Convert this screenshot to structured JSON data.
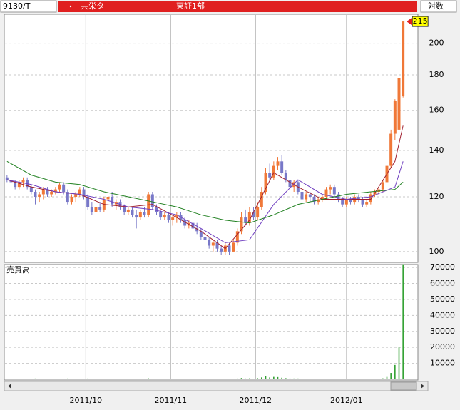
{
  "chart_data": {
    "type": "candlestick",
    "symbol": "9130/T",
    "name": "共栄タ",
    "market": "東証1部",
    "scale_label": "対数",
    "volume_label": "売買高",
    "log_scale": true,
    "up_color": "#f07838",
    "down_color": "#7878c8",
    "grid": true,
    "xlim": [
      -0.5,
      101.5
    ],
    "xticks": [
      {
        "value": 19.5,
        "label": "2011/10"
      },
      {
        "value": 40.5,
        "label": "2011/11"
      },
      {
        "value": 61.5,
        "label": "2011/12"
      },
      {
        "value": 84,
        "label": "2012/01"
      }
    ],
    "ylim": [
      96.7,
      219.7
    ],
    "yticks": [
      100,
      120,
      140,
      160,
      180,
      200
    ],
    "open": [
      128,
      127,
      126,
      124,
      126,
      127,
      124,
      122,
      120,
      121,
      123,
      121,
      122,
      123,
      125,
      122,
      118,
      120,
      121,
      123,
      120,
      116,
      114,
      116,
      115,
      119,
      120,
      117,
      118,
      116,
      114,
      115,
      113,
      112,
      114,
      113,
      121,
      116,
      114,
      112,
      113,
      111,
      112,
      113,
      111,
      109,
      110,
      108,
      107,
      105,
      104,
      102,
      103,
      101,
      100,
      102,
      100,
      103,
      107,
      112,
      110,
      114,
      112,
      116,
      122,
      130,
      128,
      133,
      135,
      130,
      127,
      124,
      126,
      122,
      119,
      121,
      120,
      118,
      119,
      120,
      123,
      124,
      121,
      119,
      117,
      119,
      118,
      120,
      119,
      117,
      118,
      121,
      122,
      123,
      126,
      133,
      148,
      150,
      168
    ],
    "high": [
      129,
      128,
      127,
      127,
      128,
      128,
      125,
      123,
      122,
      124,
      124,
      123,
      124,
      126,
      126,
      123,
      121,
      122,
      124,
      124,
      121,
      118,
      117,
      118,
      120,
      123,
      122,
      119,
      119,
      117,
      116,
      116,
      115,
      115,
      116,
      122,
      122,
      117,
      115,
      114,
      114,
      113,
      114,
      114,
      112,
      111,
      111,
      110,
      108,
      106,
      105,
      104,
      104,
      102,
      103,
      103,
      104,
      108,
      114,
      115,
      116,
      116,
      118,
      124,
      132,
      134,
      135,
      137,
      138,
      131,
      129,
      127,
      127,
      123,
      122,
      122,
      121,
      120,
      121,
      124,
      125,
      125,
      122,
      120,
      120,
      120,
      121,
      121,
      120,
      119,
      122,
      123,
      124,
      127,
      134,
      150,
      166,
      180,
      215
    ],
    "low": [
      126,
      125,
      123,
      123,
      124,
      123,
      121,
      117,
      118,
      119,
      120,
      120,
      121,
      122,
      121,
      117,
      117,
      118,
      120,
      119,
      115,
      113,
      113,
      114,
      114,
      118,
      116,
      115,
      115,
      113,
      113,
      112,
      108,
      111,
      112,
      112,
      115,
      113,
      111,
      111,
      110,
      109,
      110,
      110,
      108,
      108,
      107,
      106,
      104,
      103,
      101,
      100,
      100,
      99,
      99,
      99,
      100,
      102,
      106,
      109,
      109,
      111,
      111,
      115,
      121,
      127,
      127,
      131,
      129,
      126,
      123,
      122,
      121,
      118,
      118,
      118,
      117,
      117,
      118,
      119,
      121,
      120,
      118,
      116,
      116,
      117,
      117,
      118,
      116,
      116,
      117,
      120,
      121,
      122,
      125,
      132,
      145,
      148,
      167
    ],
    "close": [
      127,
      126,
      124,
      126,
      127,
      124,
      122,
      120,
      121,
      123,
      121,
      122,
      123,
      125,
      122,
      118,
      120,
      121,
      123,
      120,
      116,
      114,
      116,
      115,
      119,
      120,
      117,
      118,
      116,
      114,
      115,
      113,
      112,
      114,
      113,
      121,
      116,
      114,
      112,
      113,
      111,
      112,
      113,
      111,
      109,
      110,
      108,
      107,
      105,
      104,
      102,
      103,
      101,
      100,
      102,
      100,
      103,
      107,
      112,
      110,
      114,
      112,
      116,
      122,
      130,
      128,
      133,
      135,
      130,
      127,
      124,
      126,
      122,
      119,
      121,
      120,
      118,
      119,
      120,
      123,
      124,
      121,
      119,
      117,
      119,
      118,
      120,
      119,
      117,
      118,
      121,
      122,
      123,
      126,
      133,
      148,
      165,
      178,
      215
    ],
    "averages": [
      {
        "color": "#a02030",
        "x": [
          0,
          6,
          12,
          18,
          24,
          30,
          36,
          42,
          48,
          54,
          60,
          66,
          72,
          78,
          84,
          90,
          96,
          98
        ],
        "values": [
          127,
          124,
          122,
          121,
          117,
          116,
          117,
          112,
          107,
          101,
          111,
          130,
          124,
          119,
          119,
          119,
          135,
          152
        ]
      },
      {
        "color": "#7040c0",
        "x": [
          0,
          6,
          12,
          18,
          24,
          30,
          36,
          42,
          48,
          54,
          60,
          66,
          72,
          78,
          84,
          90,
          96,
          98
        ],
        "values": [
          127,
          125,
          122,
          121,
          119,
          116,
          115,
          113,
          108,
          103,
          104,
          117,
          127,
          121,
          119,
          120,
          124,
          135
        ]
      },
      {
        "color": "#208020",
        "x": [
          0,
          6,
          12,
          18,
          24,
          30,
          36,
          42,
          48,
          54,
          60,
          66,
          72,
          78,
          84,
          90,
          96,
          98
        ],
        "values": [
          135,
          129,
          126,
          125,
          122,
          120,
          118,
          116,
          113,
          111,
          110,
          113,
          117,
          119,
          121,
          122,
          123,
          126
        ]
      }
    ],
    "volume_color": "#30a030",
    "volume": [
      300,
      300,
      400,
      300,
      300,
      400,
      300,
      500,
      300,
      300,
      300,
      300,
      300,
      400,
      300,
      500,
      300,
      300,
      300,
      300,
      500,
      400,
      300,
      300,
      400,
      300,
      300,
      300,
      300,
      300,
      300,
      300,
      400,
      300,
      300,
      600,
      400,
      300,
      300,
      300,
      300,
      300,
      300,
      300,
      300,
      300,
      300,
      300,
      400,
      300,
      400,
      300,
      300,
      400,
      300,
      300,
      300,
      500,
      800,
      500,
      600,
      400,
      700,
      1200,
      1800,
      1200,
      1500,
      1400,
      1000,
      700,
      500,
      500,
      500,
      400,
      400,
      300,
      300,
      300,
      300,
      400,
      400,
      300,
      300,
      300,
      300,
      300,
      300,
      300,
      300,
      300,
      400,
      400,
      400,
      600,
      1500,
      4000,
      9000,
      20000,
      72000
    ],
    "volume_ylim": [
      0,
      71400
    ],
    "volume_ticks": [
      10000,
      20000,
      30000,
      40000,
      50000,
      60000,
      70000
    ]
  }
}
